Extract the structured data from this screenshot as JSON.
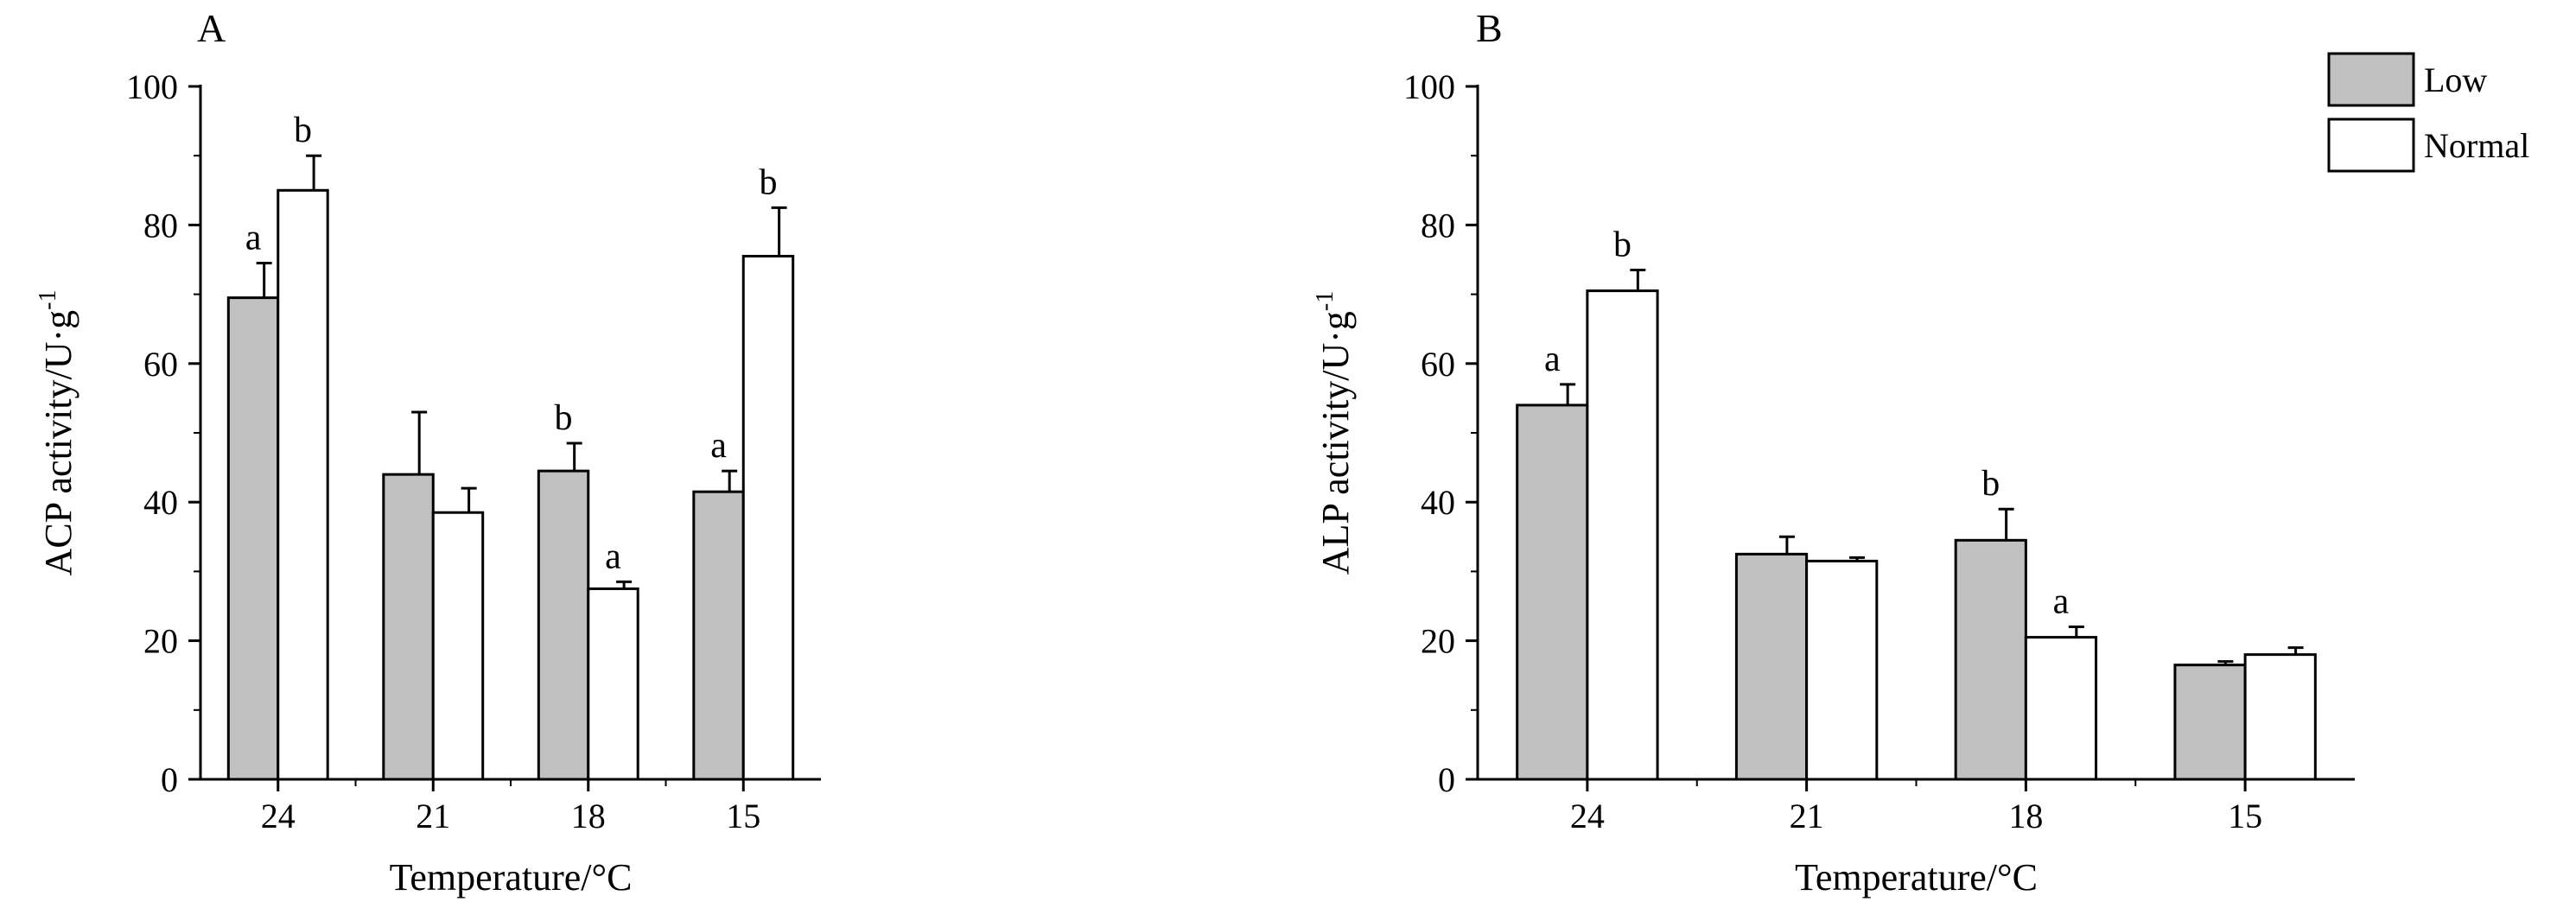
{
  "chart_data": [
    {
      "type": "bar",
      "panel_label": "A",
      "categories": [
        "24",
        "21",
        "18",
        "15"
      ],
      "series": [
        {
          "name": "Low",
          "values": [
            69.5,
            44,
            44.5,
            41.5
          ],
          "errors": [
            5,
            9,
            4,
            3
          ],
          "letters": [
            "a",
            "",
            "b",
            "a"
          ]
        },
        {
          "name": "Normal",
          "values": [
            85,
            38.5,
            27.5,
            75.5
          ],
          "errors": [
            5,
            3.5,
            1,
            7
          ],
          "letters": [
            "b",
            "",
            "a",
            "b"
          ]
        }
      ],
      "xlabel": "Temperature/°C",
      "ylabel": "ACP activity/U·g",
      "ylabel_sup": "-1",
      "ylim": [
        0,
        100
      ],
      "yticks": [
        0,
        20,
        40,
        60,
        80,
        100
      ],
      "grid": false
    },
    {
      "type": "bar",
      "panel_label": "B",
      "categories": [
        "24",
        "21",
        "18",
        "15"
      ],
      "series": [
        {
          "name": "Low",
          "values": [
            54,
            32.5,
            34.5,
            16.5
          ],
          "errors": [
            3,
            2.5,
            4.5,
            0.5
          ],
          "letters": [
            "a",
            "",
            "b",
            ""
          ]
        },
        {
          "name": "Normal",
          "values": [
            70.5,
            31.5,
            20.5,
            18
          ],
          "errors": [
            3,
            0.5,
            1.5,
            1
          ],
          "letters": [
            "b",
            "",
            "a",
            ""
          ]
        }
      ],
      "xlabel": "Temperature/°C",
      "ylabel": "ALP activity/U·g",
      "ylabel_sup": "-1",
      "ylim": [
        0,
        100
      ],
      "yticks": [
        0,
        20,
        40,
        60,
        80,
        100
      ],
      "grid": false
    }
  ],
  "legend": {
    "position": "top-right",
    "items": [
      {
        "name": "Low",
        "color": "#c0c0c0"
      },
      {
        "name": "Normal",
        "color": "#ffffff"
      }
    ]
  },
  "colors": {
    "low": "#c0c0c0",
    "normal": "#ffffff",
    "stroke": "#000000"
  }
}
